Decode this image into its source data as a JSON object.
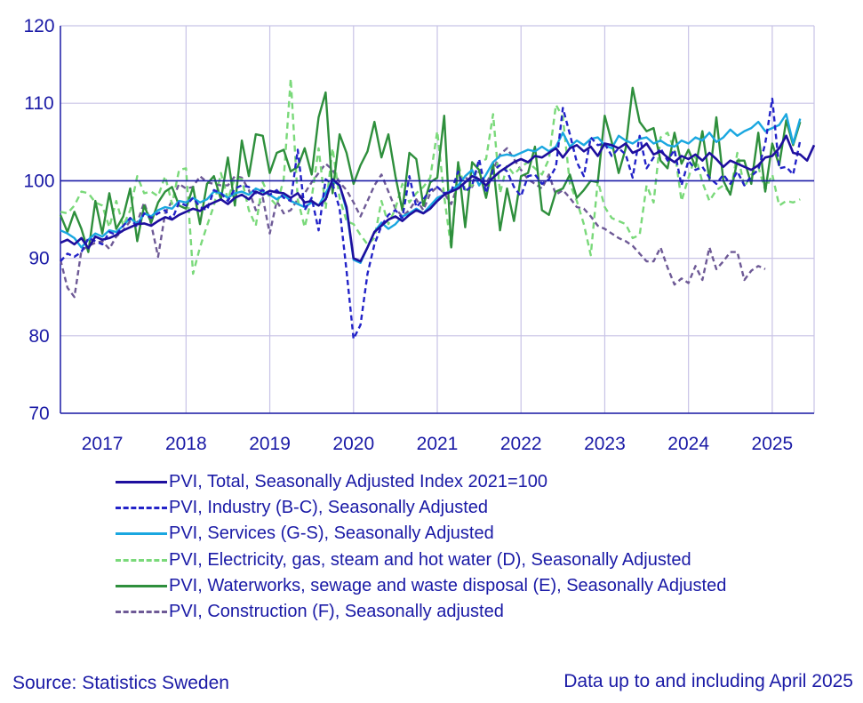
{
  "chart_data": {
    "type": "line",
    "title": "",
    "xlabel": "",
    "ylabel": "",
    "ylim": [
      70,
      120
    ],
    "yticks": [
      70,
      80,
      90,
      100,
      110,
      120
    ],
    "reference_line": 100,
    "x_start": 2016.5,
    "x_step": 0.08333,
    "xlim": [
      2016.5,
      2025.5
    ],
    "xtick_labels": [
      "2017",
      "2018",
      "2019",
      "2020",
      "2021",
      "2022",
      "2023",
      "2024",
      "2025"
    ],
    "colors": {
      "total": "#1e0f9e",
      "industry": "#2323c8",
      "services": "#1aa7e0",
      "electricity": "#7ad97a",
      "water": "#2e8f3c",
      "construction": "#6e5a96",
      "grid": "#c8c3e6",
      "axis": "#1a1aa6"
    },
    "series": [
      {
        "key": "total",
        "name": "PVI, Total, Seasonally Adjusted Index 2021=100",
        "dash": "solid",
        "values": [
          92,
          92.4,
          91.8,
          92.6,
          91.3,
          92.8,
          92.4,
          92.6,
          93,
          93.6,
          94,
          94.4,
          94.5,
          94.2,
          94.8,
          95.3,
          95,
          95.6,
          96,
          96.4,
          96.1,
          96.8,
          97.2,
          97.6,
          97,
          97.8,
          98.2,
          97.6,
          98.6,
          98.2,
          98.7,
          98.5,
          98.4,
          97.8,
          98.4,
          97.2,
          97.4,
          96.8,
          97.6,
          100.2,
          99.4,
          96.6,
          90,
          89.6,
          91.4,
          93.4,
          94.2,
          95,
          95.4,
          94.8,
          95.6,
          96.2,
          95.8,
          96.4,
          97.4,
          98.2,
          98.6,
          99,
          99.8,
          100.6,
          100.2,
          99.4,
          100.4,
          101.2,
          101.8,
          102.4,
          102.8,
          102.4,
          103.2,
          103,
          103.6,
          104.2,
          103,
          104.2,
          104.6,
          103.8,
          104.4,
          103.2,
          104.8,
          104.6,
          104.2,
          104.8,
          103.6,
          104,
          104.8,
          103.4,
          103.8,
          103,
          102.4,
          103.2,
          102.8,
          103.4,
          102.6,
          103.6,
          102.8,
          101.8,
          102.6,
          102.2,
          101.8,
          101.4,
          102,
          103,
          103.2,
          104.2,
          105.8,
          103.6,
          103.4,
          102.6,
          104.6
        ]
      },
      {
        "key": "industry",
        "name": "PVI, Industry (B-C), Seasonally Adjusted",
        "dash": "6,4",
        "values": [
          89.6,
          90.6,
          90.2,
          90.8,
          92.6,
          92.2,
          91.8,
          93.4,
          93,
          94.2,
          95.2,
          94,
          95.8,
          95.2,
          95.8,
          96.2,
          95,
          97.2,
          96.8,
          97.8,
          96.6,
          96.2,
          98.8,
          98.4,
          97.4,
          99,
          99.4,
          99.2,
          98.4,
          98.8,
          98.2,
          98.8,
          97.8,
          97.4,
          104,
          96.2,
          97.8,
          93.6,
          100.2,
          99.6,
          96.4,
          88.4,
          79.6,
          81.4,
          88,
          91.8,
          94.2,
          95.6,
          96.2,
          95.2,
          100.6,
          96.6,
          97.6,
          98.8,
          99.2,
          98.4,
          98.6,
          101.2,
          98.6,
          99.4,
          102.8,
          98.4,
          101.4,
          102,
          101.2,
          99.2,
          98,
          100.6,
          100.8,
          99.6,
          100.2,
          101.8,
          109.4,
          106,
          102.4,
          100.6,
          105.6,
          104.6,
          104.8,
          103.2,
          104.2,
          103.4,
          100.4,
          105.8,
          101.6,
          103,
          104.2,
          102.6,
          104,
          99.4,
          102.6,
          101.4,
          101.8,
          100.4,
          99.6,
          100.8,
          99.6,
          101.2,
          99.4,
          100.6,
          101.4,
          104.8,
          110.6,
          101.6,
          101.8,
          100.8,
          105.2
        ]
      },
      {
        "key": "services",
        "name": "PVI, Services (G-S), Seasonally Adjusted",
        "dash": "solid",
        "values": [
          93.6,
          93.2,
          92.6,
          91.4,
          92.4,
          93.2,
          92.8,
          93.6,
          93.4,
          94.2,
          95.2,
          94.4,
          95.8,
          95.4,
          96.2,
          96.6,
          96.4,
          97.4,
          97.2,
          97.8,
          97.2,
          97.6,
          98.6,
          98.4,
          97.8,
          98.4,
          98.6,
          98.2,
          99,
          98.6,
          98.2,
          97.6,
          98.2,
          97.4,
          97,
          96.6,
          97.2,
          96.8,
          98.4,
          100,
          99.4,
          96.2,
          89.8,
          89.4,
          91.4,
          93.4,
          94.6,
          93.8,
          94.4,
          95.4,
          95.8,
          96.4,
          95.8,
          96.8,
          97.8,
          98.2,
          98.8,
          99.4,
          100.6,
          101.4,
          99.4,
          100.8,
          102.4,
          103.2,
          103.4,
          103.2,
          103.6,
          104,
          103.8,
          104.4,
          103.8,
          104.4,
          106.2,
          104.4,
          105.2,
          104.6,
          105.4,
          105.6,
          104.6,
          104.2,
          105.8,
          105.2,
          104.8,
          105.4,
          105.6,
          104.8,
          105.2,
          104.6,
          104.4,
          105.2,
          104.8,
          105.6,
          105.2,
          106.2,
          105,
          105.6,
          106.6,
          105.8,
          106.4,
          106.8,
          107.6,
          106.4,
          106.8,
          107.2,
          108.6,
          104.8,
          108
        ]
      },
      {
        "key": "electricity",
        "name": "PVI, Electricity, gas, steam and hot water (D), Seasonally Adjusted",
        "dash": "7,5",
        "values": [
          96,
          95.8,
          96.8,
          98.6,
          98.4,
          97.2,
          96.8,
          94,
          97.4,
          94.2,
          96.2,
          100.6,
          98.4,
          98.6,
          98,
          100.6,
          97,
          101.4,
          101.6,
          88,
          91.4,
          94.2,
          96.8,
          101,
          97.6,
          100.4,
          100.2,
          96.2,
          94.2,
          99.8,
          97.8,
          96.8,
          100.2,
          113.2,
          97.6,
          94,
          97.8,
          104.2,
          96.4,
          104.2,
          97.8,
          94.8,
          94.4,
          93,
          91.8,
          92.6,
          97.4,
          94.4,
          96.4,
          99.6,
          97.2,
          98.4,
          99.2,
          100.4,
          106.4,
          98,
          91.2,
          102.2,
          98.8,
          99.4,
          102.4,
          102.8,
          108.6,
          98.4,
          102,
          100.8,
          101.8,
          102.4,
          101.6,
          100.8,
          102.8,
          109.8,
          108.2,
          99.6,
          97.4,
          94.4,
          90.4,
          100,
          96.6,
          95.2,
          94.8,
          94.4,
          92.6,
          93,
          99.4,
          97.2,
          105.6,
          106.2,
          104,
          97.4,
          100.4,
          103.2,
          99.8,
          97.4,
          98.8,
          99.4,
          98.4,
          103.6,
          99.2,
          100.8,
          101.8,
          98.8,
          100.8,
          96.8,
          97.4,
          97.2,
          97.6
        ]
      },
      {
        "key": "water",
        "name": "PVI, Waterworks, sewage and waste disposal (E), Seasonally Adjusted",
        "dash": "solid",
        "values": [
          95.6,
          93.4,
          96,
          93.8,
          90.8,
          97.4,
          93.2,
          98.4,
          93.8,
          95.4,
          99,
          92.2,
          96.8,
          94.6,
          97.2,
          98.6,
          99.2,
          96.8,
          96.4,
          99.2,
          94.4,
          99.6,
          100.6,
          97.6,
          103,
          96.8,
          105.2,
          100.6,
          106,
          105.8,
          101,
          103.6,
          104,
          101.2,
          101.8,
          104.2,
          100.8,
          108.2,
          111.4,
          98.4,
          106,
          103.6,
          99.6,
          102,
          103.8,
          107.6,
          103,
          106,
          100.6,
          96.2,
          103.6,
          102.8,
          96.8,
          99.8,
          100.4,
          108.4,
          91.4,
          102.4,
          94,
          102.4,
          101.4,
          97.8,
          102.2,
          93.6,
          99,
          94.8,
          100.6,
          101,
          104.4,
          96.2,
          95.6,
          98.6,
          99,
          100.8,
          97.8,
          98.8,
          100,
          99.8,
          108.4,
          105,
          101,
          104.2,
          112,
          107.6,
          106.4,
          106.8,
          102.6,
          101.6,
          106.2,
          102.2,
          104,
          101.8,
          106.4,
          100.2,
          108.2,
          100,
          98.2,
          102.6,
          102.6,
          99.6,
          106.2,
          98.6,
          104.8,
          102,
          107.8,
          104.6,
          107.6
        ]
      },
      {
        "key": "construction",
        "name": "PVI, Construction (F), Seasonally adjusted",
        "dash": "6,4",
        "values": [
          89.8,
          86.2,
          85,
          91,
          91.6,
          92,
          92.2,
          91.2,
          92.8,
          93.6,
          94.8,
          94.6,
          97.2,
          94.4,
          90.2,
          95.8,
          97.4,
          99.6,
          99,
          99.2,
          100.6,
          99.8,
          99.6,
          99.4,
          99.4,
          100.6,
          100.4,
          98.8,
          96.2,
          97.8,
          93.2,
          97.4,
          95.8,
          96.2,
          97.6,
          98.4,
          99.8,
          101,
          102.2,
          101.4,
          99.8,
          98.8,
          97.2,
          95.4,
          97.4,
          99.4,
          100.8,
          98.6,
          96.4,
          95.4,
          96.2,
          97.6,
          96.2,
          98.4,
          99.2,
          98.4,
          97,
          99.6,
          100.6,
          99.2,
          101.2,
          99.6,
          101.4,
          103.4,
          104.2,
          102.8,
          101.4,
          100.2,
          99.6,
          99,
          100.8,
          98.2,
          98.8,
          97.8,
          96.6,
          96.4,
          95.4,
          94.2,
          93.8,
          93.2,
          92.6,
          92.2,
          91.6,
          90.6,
          89.6,
          89.6,
          91.4,
          88.8,
          86.6,
          87.4,
          86.8,
          89,
          87.2,
          91.4,
          88.6,
          89.6,
          90.8,
          90.8,
          87.2,
          88.4,
          89,
          88.6
        ]
      }
    ]
  },
  "footer": {
    "source": "Source: Statistics Sweden",
    "note": "Data up to and including April 2025"
  }
}
